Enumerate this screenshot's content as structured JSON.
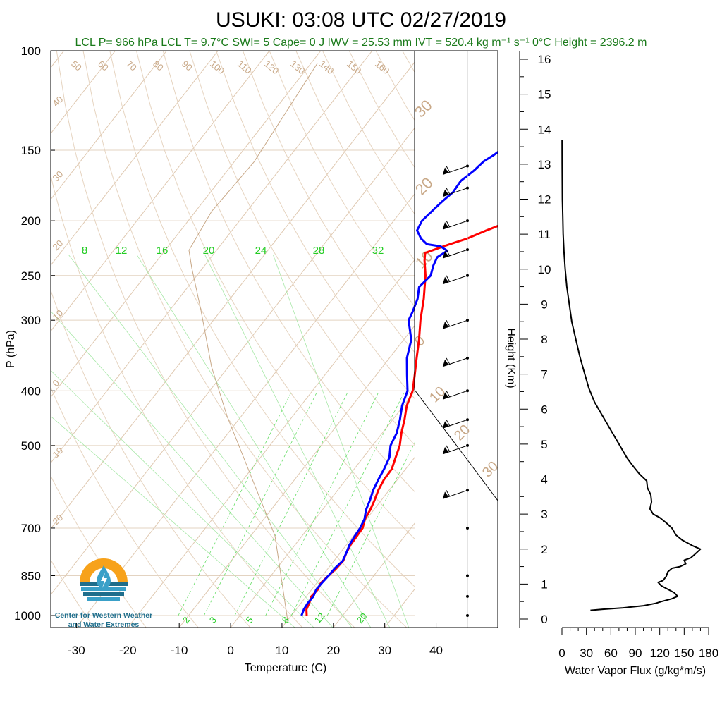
{
  "chart_data": [
    {
      "type": "line",
      "title": "USUKI: 03:08 UTC 02/27/2019",
      "subtitle": "LCL P= 966 hPa  LCL T= 9.7°C  SWI= 5  Cape= 0 J  IWV = 25.53 mm  IVT = 520.4 kg m⁻¹ s⁻¹  0°C Height = 2396.2 m",
      "xlabel": "Temperature (C)",
      "ylabel": "P (hPa)",
      "xlim": [
        -35,
        52
      ],
      "ylim": [
        1050,
        100
      ],
      "y_scale": "log",
      "x_ticks": [
        -30,
        -20,
        -10,
        0,
        10,
        20,
        30,
        40
      ],
      "y_ticks": [
        100,
        150,
        200,
        250,
        300,
        400,
        500,
        700,
        850,
        1000
      ],
      "series": [
        {
          "color": "#ff0000",
          "points": [
            [
              13,
              1000
            ],
            [
              12,
              975
            ],
            [
              11.6,
              950
            ],
            [
              11,
              925
            ],
            [
              11.2,
              900
            ],
            [
              10.8,
              875
            ],
            [
              11.2,
              850
            ],
            [
              11.6,
              825
            ],
            [
              11.8,
              800
            ],
            [
              11.2,
              775
            ],
            [
              10.8,
              750
            ],
            [
              10.7,
              725
            ],
            [
              10.6,
              700
            ],
            [
              9.7,
              675
            ],
            [
              9.3,
              650
            ],
            [
              8.7,
              625
            ],
            [
              7.9,
              600
            ],
            [
              7.4,
              575
            ],
            [
              7.3,
              550
            ],
            [
              6.3,
              525
            ],
            [
              5.3,
              500
            ],
            [
              3.7,
              475
            ],
            [
              2.3,
              450
            ],
            [
              0.6,
              425
            ],
            [
              -0.5,
              400
            ],
            [
              -2.5,
              375
            ],
            [
              -4.7,
              350
            ],
            [
              -7.0,
              325
            ],
            [
              -9.7,
              300
            ],
            [
              -12.3,
              275
            ],
            [
              -15.5,
              250
            ],
            [
              -18,
              235
            ],
            [
              -19,
              228
            ],
            [
              -16,
              221
            ],
            [
              -13,
              215
            ],
            [
              -10.5,
              208
            ],
            [
              -8,
              202
            ],
            [
              -6,
              198
            ],
            [
              -4.5,
              195
            ],
            [
              -3,
              188
            ],
            [
              -1.5,
              182
            ],
            [
              0.5,
              175
            ],
            [
              1.5,
              170
            ],
            [
              2.5,
              167
            ],
            [
              3.5,
              162
            ],
            [
              5,
              158
            ],
            [
              7,
              155
            ],
            [
              8.5,
              152
            ],
            [
              10,
              150
            ]
          ]
        },
        {
          "color": "#0000ff",
          "points": [
            [
              12,
              1000
            ],
            [
              11.5,
              975
            ],
            [
              11.3,
              950
            ],
            [
              11.4,
              925
            ],
            [
              10.9,
              900
            ],
            [
              11,
              875
            ],
            [
              11.2,
              850
            ],
            [
              11.3,
              825
            ],
            [
              11.7,
              800
            ],
            [
              11.2,
              775
            ],
            [
              10.6,
              750
            ],
            [
              10.3,
              725
            ],
            [
              10.1,
              700
            ],
            [
              9.6,
              675
            ],
            [
              8.5,
              650
            ],
            [
              7.8,
              625
            ],
            [
              6.9,
              600
            ],
            [
              6.3,
              575
            ],
            [
              5.8,
              550
            ],
            [
              5.1,
              525
            ],
            [
              3.5,
              500
            ],
            [
              2.8,
              475
            ],
            [
              1.4,
              450
            ],
            [
              -0.3,
              425
            ],
            [
              -1.5,
              400
            ],
            [
              -4,
              375
            ],
            [
              -6.6,
              350
            ],
            [
              -8.5,
              325
            ],
            [
              -12,
              300
            ],
            [
              -12.5,
              290
            ],
            [
              -13.5,
              275
            ],
            [
              -15,
              262
            ],
            [
              -14.5,
              250
            ],
            [
              -15.5,
              240
            ],
            [
              -16,
              232
            ],
            [
              -15,
              226
            ],
            [
              -17,
              222
            ],
            [
              -20,
              220
            ],
            [
              -22,
              215
            ],
            [
              -24,
              208
            ],
            [
              -24.5,
              200
            ],
            [
              -24,
              192
            ],
            [
              -23.5,
              185
            ],
            [
              -22.8,
              178
            ],
            [
              -23,
              170
            ],
            [
              -22,
              163
            ],
            [
              -21.5,
              157
            ],
            [
              -20.5,
              153
            ],
            [
              -20,
              150
            ]
          ]
        }
      ],
      "reference_lines": {
        "dry_adiabat_labels": [
          "50",
          "60",
          "70",
          "80",
          "90",
          "100",
          "110",
          "120",
          "130",
          "140",
          "150",
          "160"
        ],
        "isotherm_labels": [
          "40",
          "30",
          "20",
          "10",
          "0",
          "10",
          "20",
          "30",
          "30",
          "20",
          "10",
          "0",
          "10",
          "20",
          "30"
        ],
        "moist_adiabat_labels": [
          "8",
          "12",
          "16",
          "20",
          "24",
          "28",
          "32"
        ],
        "mixing_ratio_labels": [
          "2",
          "3",
          "5",
          "8",
          "12",
          "20"
        ]
      },
      "wind_barbs": {
        "levels_hpa": [
          1000,
          925,
          850,
          700,
          600,
          500,
          450,
          400,
          350,
          300,
          250,
          225,
          200,
          175,
          160
        ]
      }
    },
    {
      "type": "line",
      "xlabel": "Water Vapor Flux (g/kg*m/s)",
      "ylabel": "Height (Km)",
      "xlim": [
        0,
        180
      ],
      "ylim": [
        0,
        16.5
      ],
      "x_ticks": [
        0,
        30,
        60,
        90,
        120,
        150,
        180
      ],
      "y_ticks": [
        0,
        1,
        2,
        3,
        4,
        5,
        6,
        7,
        8,
        9,
        10,
        11,
        12,
        13,
        14,
        15,
        16
      ],
      "series": [
        {
          "color": "#000000",
          "points": [
            [
              35,
              0.25
            ],
            [
              50,
              0.28
            ],
            [
              75,
              0.32
            ],
            [
              100,
              0.38
            ],
            [
              115,
              0.45
            ],
            [
              122,
              0.5
            ],
            [
              135,
              0.58
            ],
            [
              142,
              0.65
            ],
            [
              138,
              0.75
            ],
            [
              130,
              0.85
            ],
            [
              122,
              0.95
            ],
            [
              118,
              1.05
            ],
            [
              124,
              1.1
            ],
            [
              128,
              1.22
            ],
            [
              130,
              1.35
            ],
            [
              135,
              1.45
            ],
            [
              145,
              1.5
            ],
            [
              152,
              1.58
            ],
            [
              150,
              1.68
            ],
            [
              158,
              1.75
            ],
            [
              163,
              1.85
            ],
            [
              170,
              2.0
            ],
            [
              160,
              2.1
            ],
            [
              148,
              2.25
            ],
            [
              140,
              2.4
            ],
            [
              135,
              2.6
            ],
            [
              128,
              2.75
            ],
            [
              120,
              2.9
            ],
            [
              112,
              3.0
            ],
            [
              108,
              3.15
            ],
            [
              110,
              3.35
            ],
            [
              109,
              3.55
            ],
            [
              105,
              3.75
            ],
            [
              104,
              3.95
            ],
            [
              95,
              4.15
            ],
            [
              88,
              4.35
            ],
            [
              80,
              4.6
            ],
            [
              70,
              5.0
            ],
            [
              60,
              5.4
            ],
            [
              50,
              5.8
            ],
            [
              40,
              6.2
            ],
            [
              33,
              6.6
            ],
            [
              28,
              7.0
            ],
            [
              22,
              7.5
            ],
            [
              17,
              8.0
            ],
            [
              12,
              8.5
            ],
            [
              9,
              9.0
            ],
            [
              6,
              9.5
            ],
            [
              4,
              10.0
            ],
            [
              2.5,
              10.5
            ],
            [
              1.5,
              11.0
            ],
            [
              1,
              11.5
            ],
            [
              0.5,
              12.0
            ],
            [
              0.3,
              13.0
            ],
            [
              0.2,
              13.7
            ]
          ]
        }
      ]
    }
  ],
  "logo": {
    "line1": "Center for Western Weather",
    "line2": "and Water Extremes"
  }
}
